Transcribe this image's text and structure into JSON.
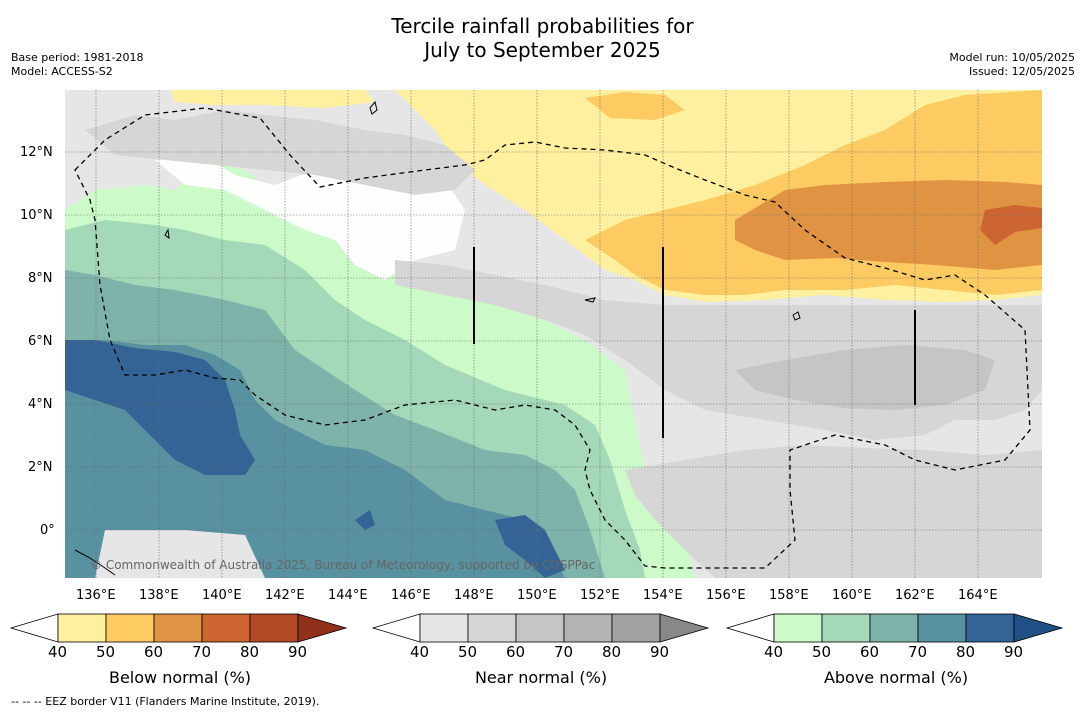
{
  "title_line1": "Tercile rainfall probabilities for",
  "title_line2": "July to September 2025",
  "meta_left": {
    "base_period": "Base period: 1981-2018",
    "model": "Model: ACCESS-S2"
  },
  "meta_right": {
    "model_run": "Model run: 10/05/2025",
    "issued": "Issued: 12/05/2025"
  },
  "copyright": "© Commonwealth of Australia 2025, Bureau of Meteorology, supported by COSPPac",
  "footnote": "--  --  -- EEZ border V11 (Flanders Marine Institute, 2019).",
  "lon_ticks": [
    "136°E",
    "138°E",
    "140°E",
    "142°E",
    "144°E",
    "146°E",
    "148°E",
    "150°E",
    "152°E",
    "154°E",
    "156°E",
    "158°E",
    "160°E",
    "162°E",
    "164°E"
  ],
  "lat_ticks": [
    "12°N",
    "10°N",
    "8°N",
    "6°N",
    "4°N",
    "2°N",
    "0°"
  ],
  "colorbars": [
    {
      "label": "Below normal (%)",
      "ticks": [
        "40",
        "50",
        "60",
        "70",
        "80",
        "90"
      ],
      "colors": [
        "#ffffff",
        "#fff0a0",
        "#fdcb62",
        "#e09443",
        "#cc6531",
        "#b04a26",
        "#8f311b"
      ]
    },
    {
      "label": "Near normal (%)",
      "ticks": [
        "40",
        "50",
        "60",
        "70",
        "80",
        "90"
      ],
      "colors": [
        "#ffffff",
        "#e6e6e6",
        "#d6d6d6",
        "#c5c5c5",
        "#b3b3b3",
        "#a2a2a2",
        "#888888"
      ]
    },
    {
      "label": "Above normal (%)",
      "ticks": [
        "40",
        "50",
        "60",
        "70",
        "80",
        "90"
      ],
      "colors": [
        "#ffffff",
        "#ccfac8",
        "#a3d8b9",
        "#7eb3aa",
        "#58919f",
        "#346495",
        "#1f4f85"
      ]
    }
  ]
}
